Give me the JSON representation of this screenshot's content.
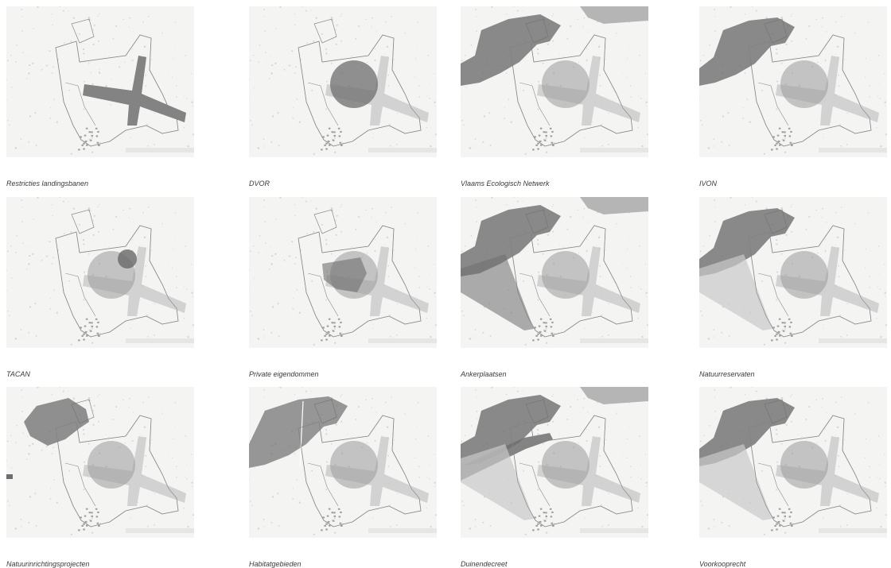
{
  "panels": [
    {
      "caption": "Restricties landingsbanen",
      "layers": [
        "runways"
      ]
    },
    {
      "caption": "DVOR",
      "layers": [
        "runways-light",
        "dvor"
      ]
    },
    {
      "caption": "Vlaams Ecologisch Netwerk",
      "layers": [
        "runways-light",
        "dvor-light",
        "ven"
      ]
    },
    {
      "caption": "IVON",
      "layers": [
        "runways-light",
        "dvor-light",
        "ivon"
      ]
    },
    {
      "caption": "TACAN",
      "layers": [
        "runways-light",
        "dvor-light",
        "tacan"
      ]
    },
    {
      "caption": "Private eigendommen",
      "layers": [
        "runways-light",
        "dvor-light",
        "private"
      ]
    },
    {
      "caption": "Ankerplaatsen",
      "layers": [
        "runways-light",
        "dvor-light",
        "ven",
        "anker"
      ]
    },
    {
      "caption": "Natuurreservaten",
      "layers": [
        "runways-light",
        "dvor-light",
        "ivon",
        "anker-light"
      ]
    },
    {
      "caption": "Natuurinrichtingsprojecten",
      "layers": [
        "runways-light",
        "dvor-light",
        "natuurinrichting"
      ]
    },
    {
      "caption": "Habitatgebieden",
      "layers": [
        "runways-light",
        "dvor-light",
        "habitat"
      ]
    },
    {
      "caption": "Duinendecreet",
      "layers": [
        "runways-light",
        "dvor-light",
        "ven",
        "duinen",
        "anker-light"
      ]
    },
    {
      "caption": "Voorkooprecht",
      "layers": [
        "runways-light",
        "dvor-light",
        "ivon",
        "anker-light"
      ]
    }
  ],
  "colors": {
    "background": "#f4f4f3",
    "outline": "#8a8a8a",
    "dark": "#6e6e6e",
    "medium": "#9a9a9a",
    "light": "#c9c9c9",
    "caption": "#3a3a3a"
  }
}
